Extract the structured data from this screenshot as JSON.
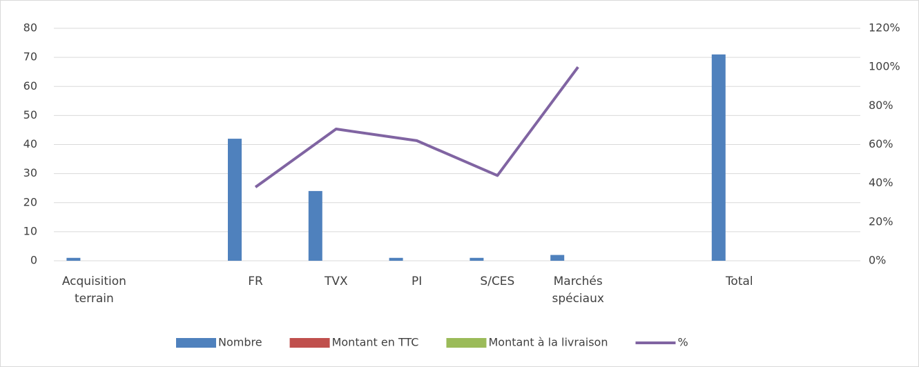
{
  "chart_data": {
    "type": "bar",
    "categories": [
      "Acquisition terrain",
      null,
      "FR",
      "TVX",
      "PI",
      "S/CES",
      "Marchés spéciaux",
      null,
      "Total",
      null
    ],
    "series": [
      {
        "name": "Nombre",
        "color": "#4f81bd",
        "type": "bar",
        "values": [
          1,
          null,
          42,
          24,
          1,
          1,
          2,
          null,
          71,
          null
        ]
      },
      {
        "name": "Montant en TTC",
        "color": "#c0504d",
        "type": "bar",
        "values": [
          null,
          null,
          null,
          null,
          null,
          null,
          null,
          null,
          null,
          null
        ]
      },
      {
        "name": "Montant à la livraison",
        "color": "#9bbb59",
        "type": "bar",
        "values": [
          null,
          null,
          null,
          null,
          null,
          null,
          null,
          null,
          null,
          null
        ]
      },
      {
        "name": "%",
        "color": "#8064a2",
        "type": "line",
        "axis": "y2",
        "values": [
          null,
          null,
          38,
          68,
          62,
          44,
          100,
          null,
          null,
          null
        ]
      }
    ],
    "ylim": [
      0,
      80
    ],
    "yticks": [
      0,
      10,
      20,
      30,
      40,
      50,
      60,
      70,
      80
    ],
    "y2lim": [
      0,
      120
    ],
    "y2ticks": [
      {
        "value": 0,
        "label": "0%"
      },
      {
        "value": 20,
        "label": "20%"
      },
      {
        "value": 40,
        "label": "40%"
      },
      {
        "value": 60,
        "label": "60%"
      },
      {
        "value": 80,
        "label": "80%"
      },
      {
        "value": 100,
        "label": "100%"
      },
      {
        "value": 120,
        "label": "120%"
      }
    ],
    "grid": true,
    "legend": "bottom"
  }
}
